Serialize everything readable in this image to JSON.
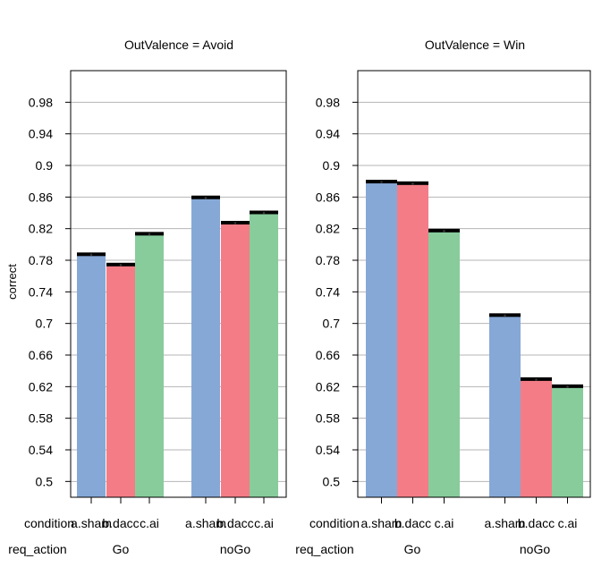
{
  "chart_data": {
    "type": "bar",
    "ylabel": "correct",
    "ylim": [
      0.48,
      1.02
    ],
    "yticks": [
      "0.5",
      "0.54",
      "0.58",
      "0.62",
      "0.66",
      "0.7",
      "0.74",
      "0.78",
      "0.82",
      "0.86",
      "0.9",
      "0.94",
      "0.98"
    ],
    "grid": true,
    "factor_labels": {
      "condition": "condition",
      "req_action": "req_action"
    },
    "conditions": [
      "a.sham",
      "b.dacc",
      "c.ai"
    ],
    "colors": [
      "#86a8d6",
      "#f47c86",
      "#88cc9c"
    ],
    "error_bar_color": "#000000",
    "panels": [
      {
        "title": "OutValence = Avoid",
        "groups": [
          {
            "req_action": "Go",
            "values": [
              0.787,
              0.774,
              0.813
            ]
          },
          {
            "req_action": "noGo",
            "values": [
              0.859,
              0.827,
              0.84
            ]
          }
        ]
      },
      {
        "title": "OutValence = Win",
        "groups": [
          {
            "req_action": "Go",
            "values": [
              0.879,
              0.877,
              0.817
            ]
          },
          {
            "req_action": "noGo",
            "values": [
              0.71,
              0.629,
              0.62
            ]
          }
        ]
      }
    ]
  }
}
